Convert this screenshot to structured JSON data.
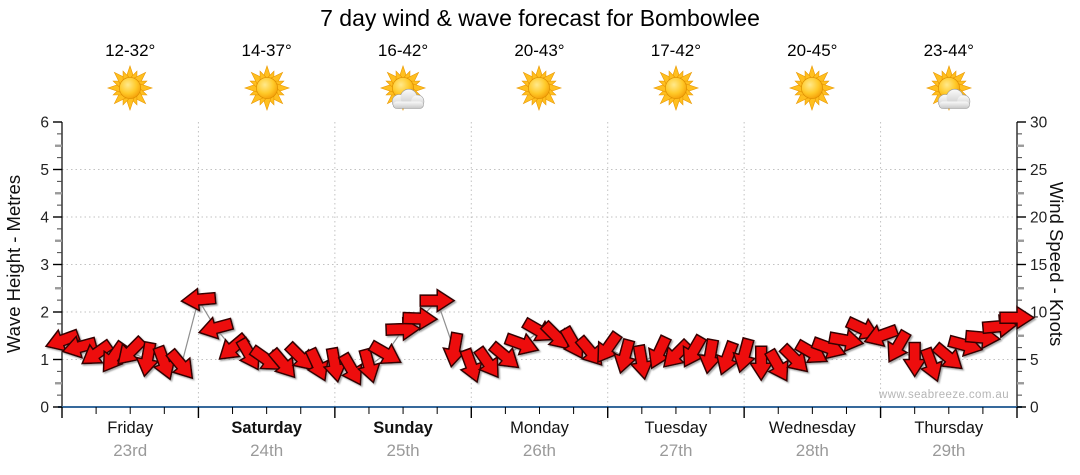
{
  "title": "7 day wind & wave forecast for Bombowlee",
  "watermark": "www.seabreeze.com.au",
  "days": [
    {
      "name": "Friday",
      "date": "23rd",
      "temp": "12-32°",
      "icon": "sunny",
      "weekend": false
    },
    {
      "name": "Saturday",
      "date": "24th",
      "temp": "14-37°",
      "icon": "sunny",
      "weekend": true
    },
    {
      "name": "Sunday",
      "date": "25th",
      "temp": "16-42°",
      "icon": "partly-cloudy",
      "weekend": true
    },
    {
      "name": "Monday",
      "date": "26th",
      "temp": "20-43°",
      "icon": "sunny",
      "weekend": false
    },
    {
      "name": "Tuesday",
      "date": "27th",
      "temp": "17-42°",
      "icon": "sunny",
      "weekend": false
    },
    {
      "name": "Wednesday",
      "date": "28th",
      "temp": "20-45°",
      "icon": "sunny",
      "weekend": false
    },
    {
      "name": "Thursday",
      "date": "29th",
      "temp": "23-44°",
      "icon": "partly-cloudy",
      "weekend": false
    }
  ],
  "colors": {
    "arrow_red": "#ED1111",
    "arrow_outline": "#350000",
    "axis_blue": "#36699C",
    "axis_black": "#000000",
    "grid_gray": "#C2C2C2",
    "line_gray": "#8F8F8F",
    "tick_minor": "#444444",
    "tick_half": "#9A9A9A",
    "date_gray": "#9A9A9A",
    "watermark_gray": "#B5B5B5"
  },
  "chart_data": {
    "type": "line",
    "subtype": "wind-direction-arrows",
    "title": "7 day wind & wave forecast for Bombowlee",
    "left_axis": {
      "label": "Wave Height - Metres",
      "min": 0,
      "max": 6,
      "major_step": 1,
      "minor_step": 0.25,
      "ticks": [
        0,
        1,
        2,
        3,
        4,
        5,
        6
      ]
    },
    "right_axis": {
      "label": "Wind Speed - Knots",
      "min": 0,
      "max": 30,
      "major_step": 5,
      "ticks": [
        0,
        5,
        10,
        15,
        20,
        25,
        30
      ]
    },
    "scale_note": "axes aligned so 1 metre = 5 knots",
    "x_axis": {
      "days": [
        "Friday 23rd",
        "Saturday 24th",
        "Sunday 25th",
        "Monday 26th",
        "Tuesday 27th",
        "Wednesday 28th",
        "Thursday 29th"
      ],
      "minor_ticks_per_day": 4
    },
    "grid": {
      "horizontal_dotted_at_metres": [
        1,
        2,
        3,
        4,
        5
      ],
      "vertical_dotted_at_day_boundaries": [
        1,
        2,
        3,
        4,
        5,
        6
      ]
    },
    "legend_position": "none",
    "dir_convention": "degrees clockwise from screen-up; arrow points toward this direction",
    "points": [
      {
        "t": 0.0,
        "kt": 7.0,
        "dir": 250
      },
      {
        "t": 0.125,
        "kt": 6.3,
        "dir": 255
      },
      {
        "t": 0.25,
        "kt": 5.6,
        "dir": 235
      },
      {
        "t": 0.375,
        "kt": 5.2,
        "dir": 215
      },
      {
        "t": 0.5,
        "kt": 5.8,
        "dir": 225
      },
      {
        "t": 0.625,
        "kt": 5.0,
        "dir": 190
      },
      {
        "t": 0.75,
        "kt": 4.6,
        "dir": 160
      },
      {
        "t": 0.875,
        "kt": 4.4,
        "dir": 140
      },
      {
        "t": 1.0,
        "kt": 11.3,
        "dir": 265
      },
      {
        "t": 1.125,
        "kt": 8.3,
        "dir": 255
      },
      {
        "t": 1.25,
        "kt": 6.2,
        "dir": 230
      },
      {
        "t": 1.375,
        "kt": 5.5,
        "dir": 150
      },
      {
        "t": 1.5,
        "kt": 5.0,
        "dir": 125
      },
      {
        "t": 1.625,
        "kt": 4.5,
        "dir": 140
      },
      {
        "t": 1.75,
        "kt": 5.2,
        "dir": 135
      },
      {
        "t": 1.875,
        "kt": 4.4,
        "dir": 155
      },
      {
        "t": 2.0,
        "kt": 4.4,
        "dir": 170
      },
      {
        "t": 2.125,
        "kt": 3.9,
        "dir": 150
      },
      {
        "t": 2.25,
        "kt": 4.3,
        "dir": 165
      },
      {
        "t": 2.375,
        "kt": 5.6,
        "dir": 120
      },
      {
        "t": 2.5,
        "kt": 8.2,
        "dir": 88
      },
      {
        "t": 2.625,
        "kt": 9.3,
        "dir": 92
      },
      {
        "t": 2.75,
        "kt": 11.2,
        "dir": 90
      },
      {
        "t": 2.875,
        "kt": 6.0,
        "dir": 190
      },
      {
        "t": 3.0,
        "kt": 4.3,
        "dir": 160
      },
      {
        "t": 3.125,
        "kt": 4.6,
        "dir": 145
      },
      {
        "t": 3.25,
        "kt": 5.3,
        "dir": 130
      },
      {
        "t": 3.375,
        "kt": 6.6,
        "dir": 110
      },
      {
        "t": 3.5,
        "kt": 8.0,
        "dir": 120
      },
      {
        "t": 3.625,
        "kt": 7.4,
        "dir": 135
      },
      {
        "t": 3.75,
        "kt": 6.7,
        "dir": 150
      },
      {
        "t": 3.875,
        "kt": 5.8,
        "dir": 140
      },
      {
        "t": 4.0,
        "kt": 6.2,
        "dir": 215
      },
      {
        "t": 4.125,
        "kt": 5.3,
        "dir": 195
      },
      {
        "t": 4.25,
        "kt": 4.7,
        "dir": 170
      },
      {
        "t": 4.375,
        "kt": 5.7,
        "dir": 205
      },
      {
        "t": 4.5,
        "kt": 5.5,
        "dir": 225
      },
      {
        "t": 4.625,
        "kt": 5.8,
        "dir": 210
      },
      {
        "t": 4.75,
        "kt": 5.3,
        "dir": 190
      },
      {
        "t": 4.875,
        "kt": 5.1,
        "dir": 200
      },
      {
        "t": 5.0,
        "kt": 5.4,
        "dir": 195
      },
      {
        "t": 5.125,
        "kt": 4.6,
        "dir": 180
      },
      {
        "t": 5.25,
        "kt": 4.3,
        "dir": 150
      },
      {
        "t": 5.375,
        "kt": 5.0,
        "dir": 135
      },
      {
        "t": 5.5,
        "kt": 5.7,
        "dir": 120
      },
      {
        "t": 5.625,
        "kt": 6.2,
        "dir": 110
      },
      {
        "t": 5.75,
        "kt": 7.0,
        "dir": 100
      },
      {
        "t": 5.875,
        "kt": 8.2,
        "dir": 115
      },
      {
        "t": 6.0,
        "kt": 7.5,
        "dir": 250
      },
      {
        "t": 6.125,
        "kt": 6.3,
        "dir": 210
      },
      {
        "t": 6.25,
        "kt": 5.0,
        "dir": 180
      },
      {
        "t": 6.375,
        "kt": 4.4,
        "dir": 160
      },
      {
        "t": 6.5,
        "kt": 5.2,
        "dir": 130
      },
      {
        "t": 6.625,
        "kt": 6.5,
        "dir": 105
      },
      {
        "t": 6.75,
        "kt": 7.3,
        "dir": 95
      },
      {
        "t": 6.875,
        "kt": 8.5,
        "dir": 85
      },
      {
        "t": 7.0,
        "kt": 9.4,
        "dir": 90
      }
    ]
  }
}
